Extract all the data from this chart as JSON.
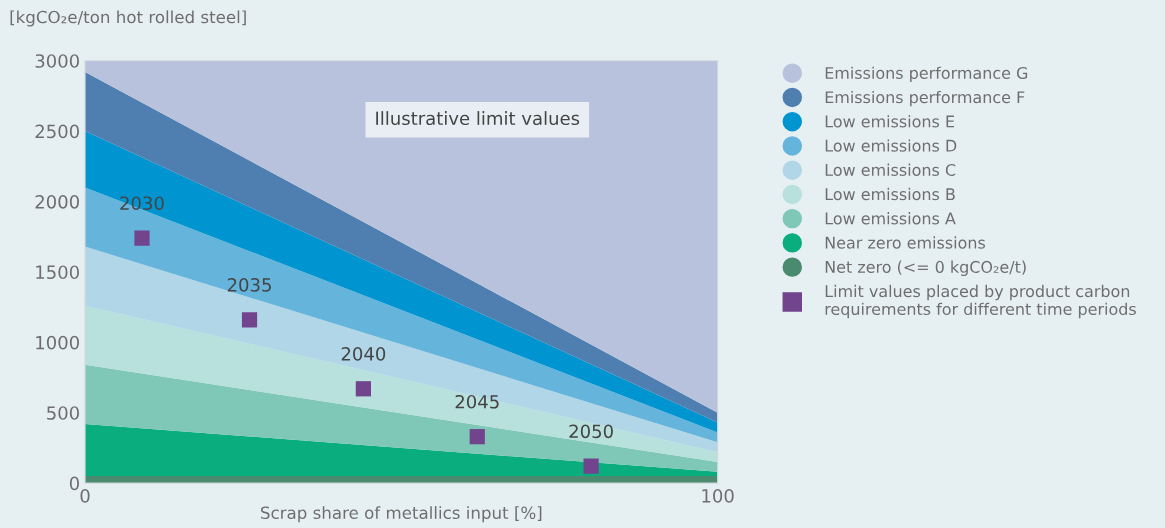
{
  "chart_data": {
    "type": "area",
    "stacked": true,
    "ylabel": "[kgCO₂e/ton hot rolled steel]",
    "xlabel": "Scrap share of metallics input [%]",
    "x": [
      0,
      100
    ],
    "xlim": [
      0,
      100
    ],
    "xticks": [
      0,
      100
    ],
    "ylim": [
      0,
      3000
    ],
    "yticks": [
      0,
      500,
      1000,
      1500,
      2000,
      2500,
      3000
    ],
    "grid": false,
    "legend": "right",
    "series": [
      {
        "name": "Net zero (<= 0 kgCO₂e/t)",
        "color": "#4a8a6e",
        "values": [
          50,
          50
        ]
      },
      {
        "name": "Near zero emissions",
        "color": "#0aae7e",
        "values": [
          370,
          30
        ]
      },
      {
        "name": "Low emissions A",
        "color": "#7fc8b8",
        "values": [
          420,
          70
        ]
      },
      {
        "name": "Low emissions B",
        "color": "#b8e0dc",
        "values": [
          420,
          70
        ]
      },
      {
        "name": "Low emissions C",
        "color": "#b0d6e8",
        "values": [
          420,
          70
        ]
      },
      {
        "name": "Low emissions D",
        "color": "#65b4dc",
        "values": [
          420,
          70
        ]
      },
      {
        "name": "Low emissions E",
        "color": "#0094d0",
        "values": [
          400,
          70
        ]
      },
      {
        "name": "Emissions performance F",
        "color": "#4f7fb0",
        "values": [
          420,
          70
        ]
      },
      {
        "name": "Emissions performance G",
        "color": "#b8c2dc",
        "values": [
          80,
          2500
        ]
      },
      {
        "type": "scatter",
        "name": "Limit values placed by product carbon requirements for different time periods",
        "color": "#72448e",
        "marker": "square",
        "x": [
          9,
          26,
          44,
          62,
          80
        ],
        "values": [
          1740,
          1160,
          670,
          330,
          120
        ]
      }
    ],
    "annotations": [
      "Illustrative limit values",
      {
        "text": "2030",
        "x": 9,
        "y": 1740
      },
      {
        "text": "2035",
        "x": 26,
        "y": 1160
      },
      {
        "text": "2040",
        "x": 44,
        "y": 670
      },
      {
        "text": "2045",
        "x": 62,
        "y": 330
      },
      {
        "text": "2050",
        "x": 80,
        "y": 120
      }
    ]
  }
}
